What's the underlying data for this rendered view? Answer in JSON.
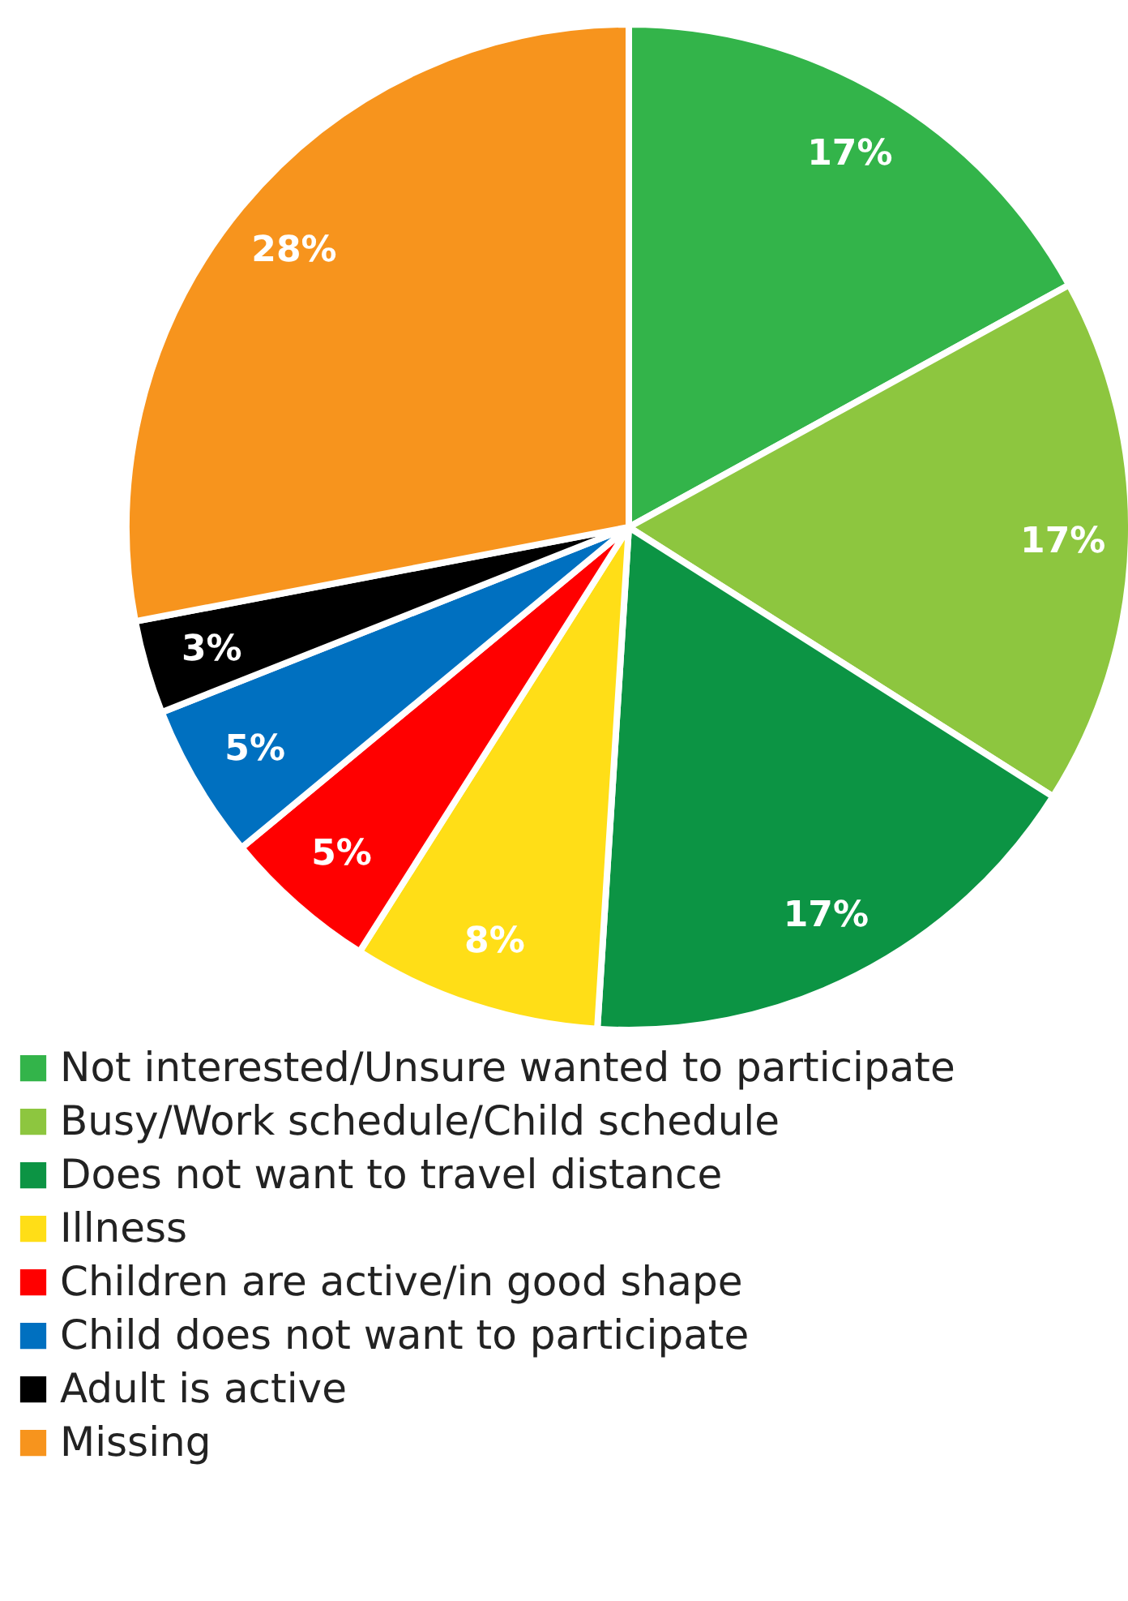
{
  "chart_data": {
    "type": "pie",
    "categories": [
      "Not interested/Unsure wanted to participate",
      "Busy/Work schedule/Child schedule",
      "Does not want to travel distance",
      "Illness",
      "Children are active/in good shape",
      "Child does not want to participate",
      "Adult is active",
      "Missing"
    ],
    "values": [
      17,
      17,
      17,
      8,
      5,
      5,
      3,
      28
    ],
    "colors": [
      "#33b44a",
      "#8dc63f",
      "#0c9444",
      "#ffde17",
      "#ff0000",
      "#0070c0",
      "#000000",
      "#f7941d"
    ],
    "value_labels": [
      "17%",
      "17%",
      "17%",
      "8%",
      "5%",
      "5%",
      "3%",
      "28%"
    ],
    "legend": "bottom"
  }
}
